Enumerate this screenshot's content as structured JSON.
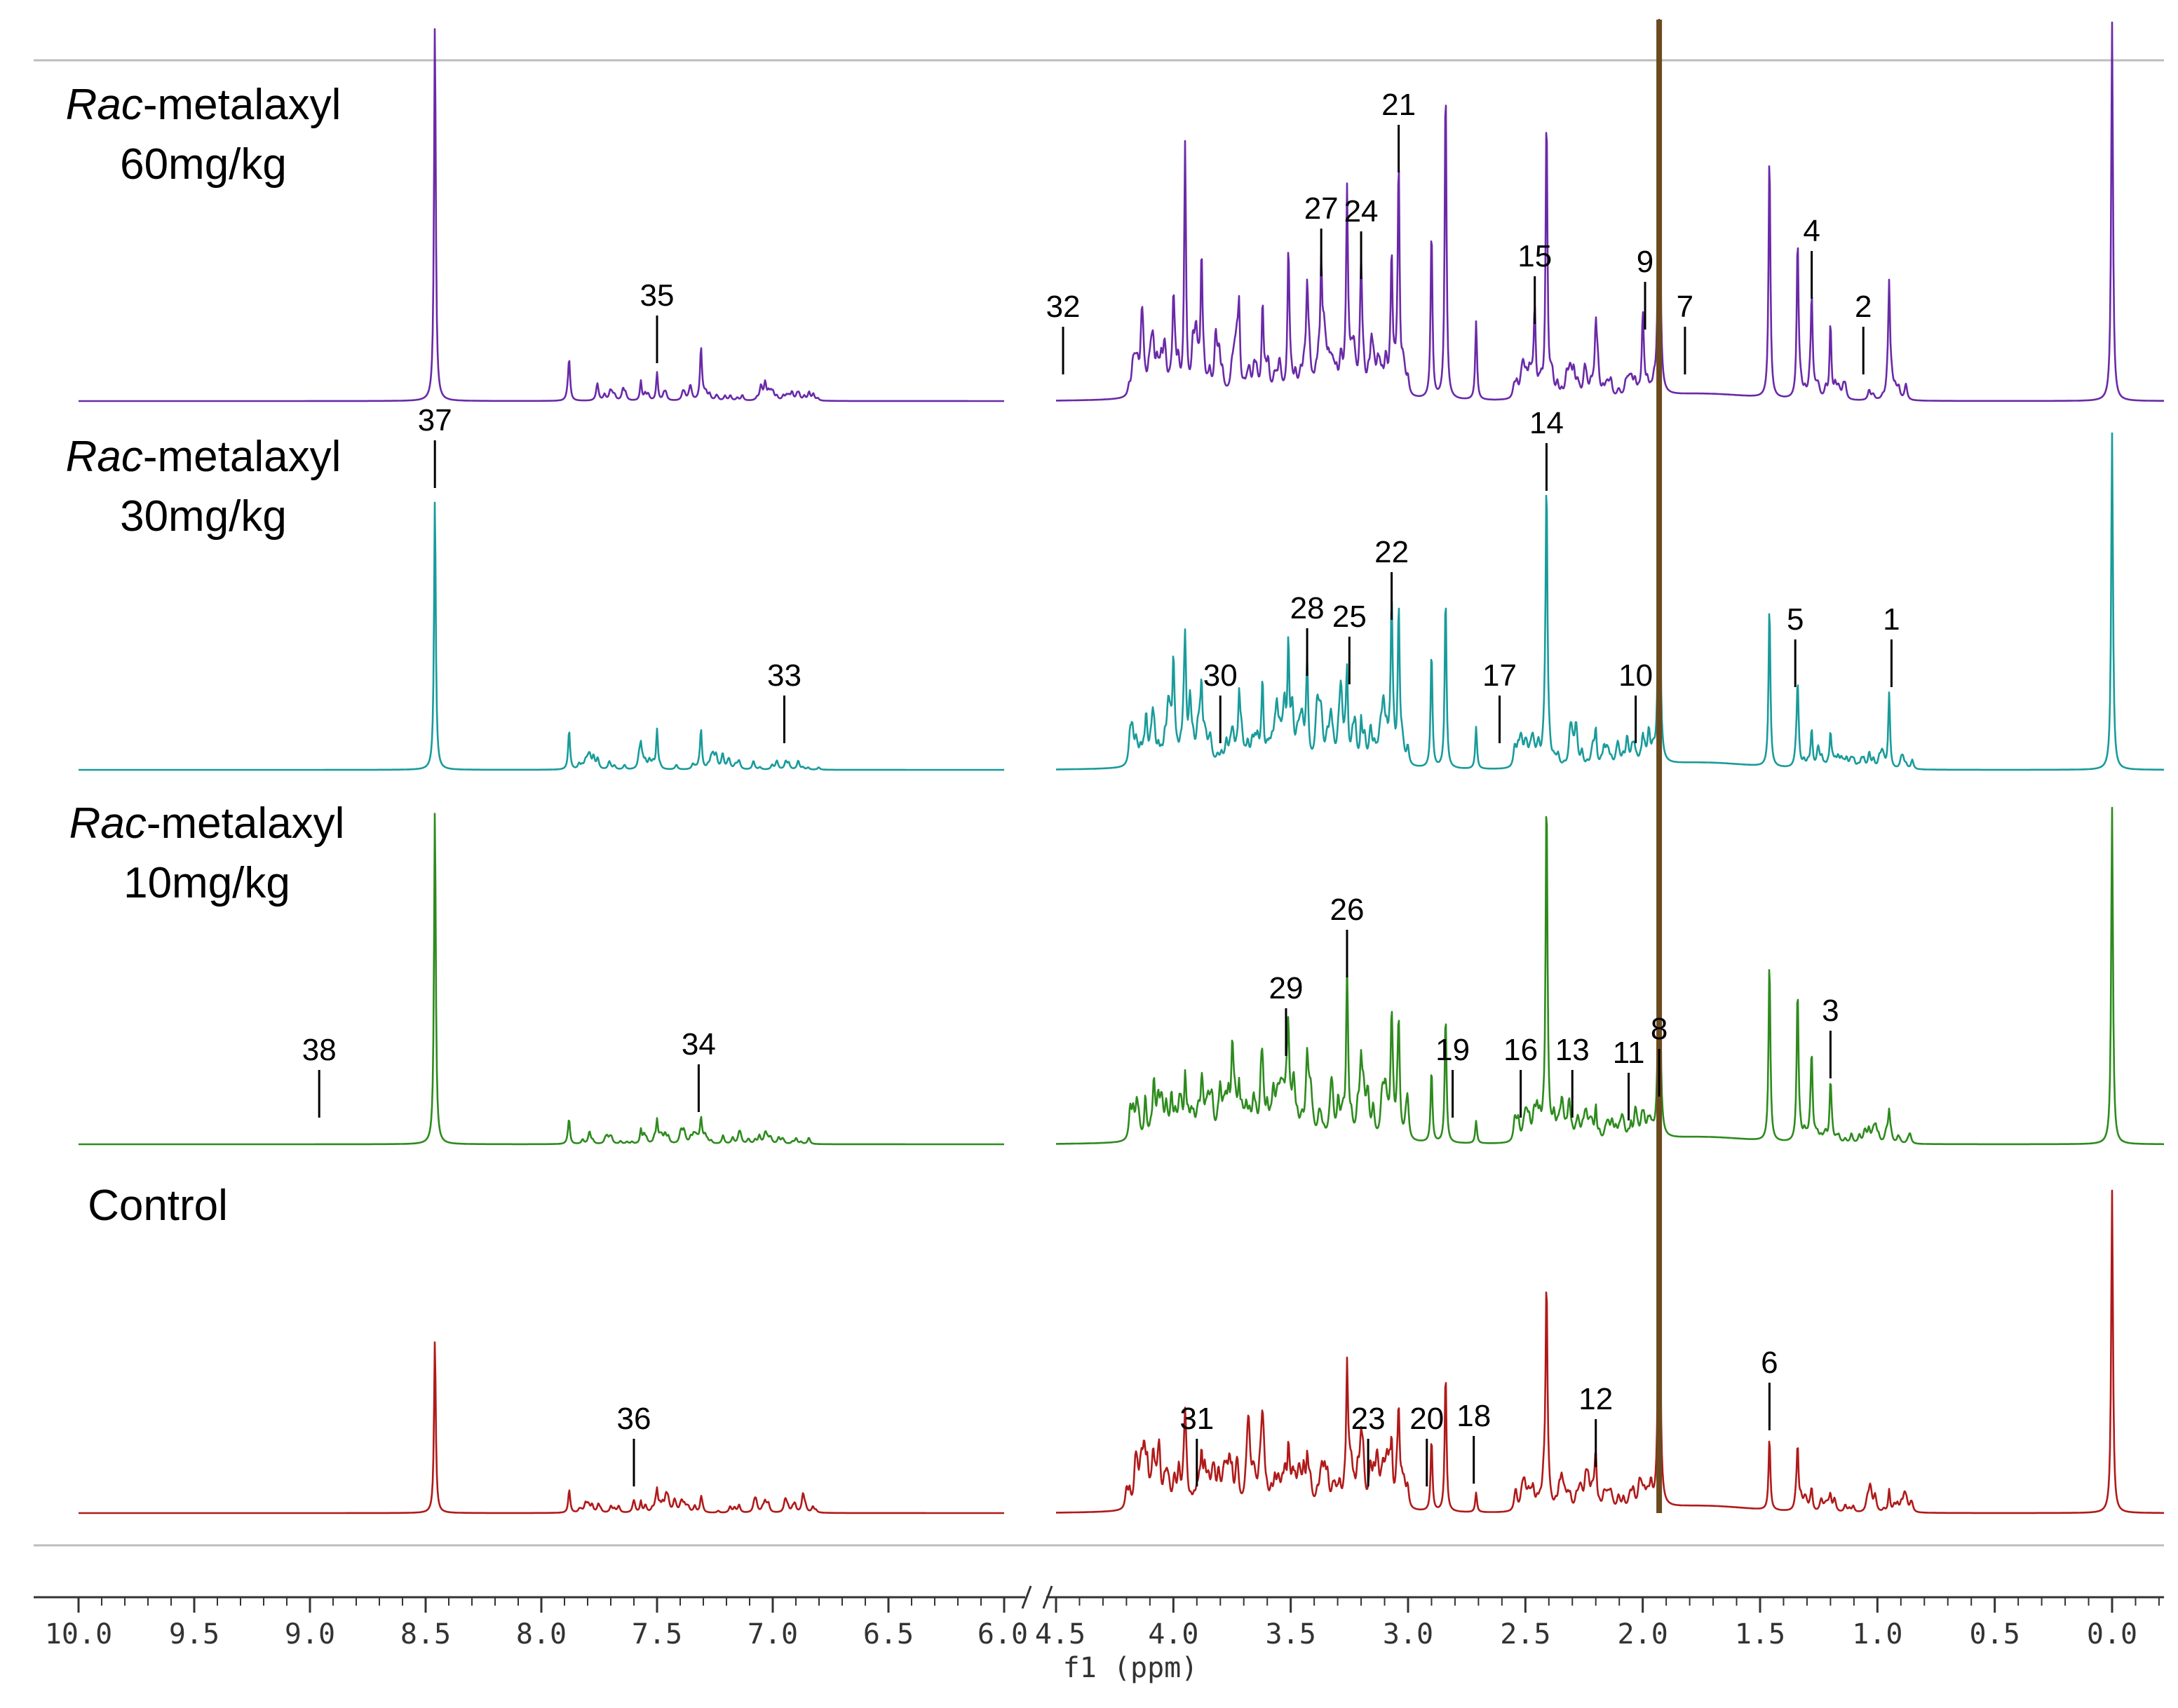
{
  "chart_data": {
    "type": "line",
    "title": "",
    "xlabel": "f1 (ppm)",
    "ylabel": "",
    "x_reversed": true,
    "axis_break": {
      "high_segment": [
        6.0,
        10.0
      ],
      "low_segment": [
        -0.2,
        4.5
      ]
    },
    "x_ticks": [
      "10.0",
      "9.5",
      "9.0",
      "8.5",
      "8.0",
      "7.5",
      "7.0",
      "6.5",
      "6.0",
      "4.5",
      "4.0",
      "3.5",
      "3.0",
      "2.5",
      "2.0",
      "1.5",
      "1.0",
      "0.5",
      "0.0"
    ],
    "series": [
      {
        "label_prefix": "Rac",
        "label_rest": "-metalaxyl",
        "label_dose": "60mg/kg",
        "color": "#6a2aa8",
        "peaks": [
          [
            8.46,
            1.35
          ],
          [
            7.88,
            0.12
          ],
          [
            7.57,
            0.07
          ],
          [
            7.5,
            0.1
          ],
          [
            7.31,
            0.13
          ],
          [
            3.95,
            0.86
          ],
          [
            3.88,
            0.46
          ],
          [
            4.0,
            0.23
          ],
          [
            3.72,
            0.26
          ],
          [
            3.62,
            0.3
          ],
          [
            3.51,
            0.44
          ],
          [
            3.43,
            0.2
          ],
          [
            3.37,
            0.41
          ],
          [
            3.26,
            0.68
          ],
          [
            3.2,
            0.4
          ],
          [
            3.07,
            0.45
          ],
          [
            3.04,
            0.78
          ],
          [
            2.9,
            0.61
          ],
          [
            2.84,
            1.14
          ],
          [
            2.71,
            0.28
          ],
          [
            2.46,
            0.24
          ],
          [
            2.41,
            1.02
          ],
          [
            2.2,
            0.17
          ],
          [
            2.0,
            0.22
          ],
          [
            1.93,
            1.35
          ],
          [
            1.46,
            0.88
          ],
          [
            1.34,
            0.56
          ],
          [
            1.28,
            0.33
          ],
          [
            1.2,
            0.27
          ],
          [
            0.95,
            0.39
          ],
          [
            0.0,
            1.35
          ]
        ],
        "labels": [
          {
            "text": "35",
            "ppm": 7.5
          },
          {
            "text": "32",
            "ppm": 4.47
          },
          {
            "text": "27",
            "ppm": 3.37
          },
          {
            "text": "24",
            "ppm": 3.2
          },
          {
            "text": "21",
            "ppm": 3.04
          },
          {
            "text": "15",
            "ppm": 2.46
          },
          {
            "text": "9",
            "ppm": 1.99
          },
          {
            "text": "7",
            "ppm": 1.82
          },
          {
            "text": "4",
            "ppm": 1.28
          },
          {
            "text": "2",
            "ppm": 1.06
          }
        ]
      },
      {
        "label_prefix": "Rac",
        "label_rest": "-metalaxyl",
        "label_dose": "30mg/kg",
        "color": "#1a9b9b",
        "peaks": [
          [
            8.46,
            0.97
          ],
          [
            7.88,
            0.13
          ],
          [
            7.57,
            0.07
          ],
          [
            7.5,
            0.14
          ],
          [
            7.31,
            0.12
          ],
          [
            3.95,
            0.25
          ],
          [
            3.88,
            0.23
          ],
          [
            4.0,
            0.22
          ],
          [
            3.72,
            0.19
          ],
          [
            3.62,
            0.26
          ],
          [
            3.51,
            0.4
          ],
          [
            3.43,
            0.3
          ],
          [
            3.26,
            0.27
          ],
          [
            3.2,
            0.14
          ],
          [
            3.07,
            0.5
          ],
          [
            3.04,
            0.52
          ],
          [
            2.9,
            0.42
          ],
          [
            2.84,
            0.62
          ],
          [
            2.71,
            0.15
          ],
          [
            2.41,
            0.96
          ],
          [
            2.2,
            0.12
          ],
          [
            2.0,
            0.08
          ],
          [
            1.93,
            1.2
          ],
          [
            1.46,
            0.58
          ],
          [
            1.34,
            0.26
          ],
          [
            1.28,
            0.13
          ],
          [
            1.2,
            0.12
          ],
          [
            0.95,
            0.26
          ],
          [
            0.0,
            1.2
          ]
        ],
        "labels": [
          {
            "text": "37",
            "ppm": 8.46
          },
          {
            "text": "33",
            "ppm": 6.95
          },
          {
            "text": "30",
            "ppm": 3.8
          },
          {
            "text": "28",
            "ppm": 3.43
          },
          {
            "text": "25",
            "ppm": 3.25
          },
          {
            "text": "22",
            "ppm": 3.07
          },
          {
            "text": "17",
            "ppm": 2.61
          },
          {
            "text": "14",
            "ppm": 2.41
          },
          {
            "text": "10",
            "ppm": 2.03
          },
          {
            "text": "5",
            "ppm": 1.35
          },
          {
            "text": "1",
            "ppm": 0.94
          }
        ]
      },
      {
        "label_prefix": "Rac",
        "label_rest": "-metalaxyl",
        "label_dose": "10mg/kg",
        "color": "#2e8b1e",
        "peaks": [
          [
            8.46,
            1.2
          ],
          [
            7.88,
            0.07
          ],
          [
            7.57,
            0.05
          ],
          [
            7.5,
            0.08
          ],
          [
            7.31,
            0.08
          ],
          [
            4.12,
            0.1
          ],
          [
            3.95,
            0.18
          ],
          [
            3.88,
            0.12
          ],
          [
            3.75,
            0.15
          ],
          [
            3.72,
            0.14
          ],
          [
            3.62,
            0.12
          ],
          [
            3.51,
            0.28
          ],
          [
            3.43,
            0.16
          ],
          [
            3.26,
            0.56
          ],
          [
            3.2,
            0.14
          ],
          [
            3.07,
            0.28
          ],
          [
            3.04,
            0.26
          ],
          [
            2.9,
            0.26
          ],
          [
            2.84,
            0.46
          ],
          [
            2.71,
            0.08
          ],
          [
            2.41,
            1.2
          ],
          [
            2.2,
            0.12
          ],
          [
            2.05,
            0.05
          ],
          [
            1.93,
            1.2
          ],
          [
            1.46,
            0.65
          ],
          [
            1.34,
            0.52
          ],
          [
            1.28,
            0.25
          ],
          [
            1.2,
            0.2
          ],
          [
            0.95,
            0.1
          ],
          [
            0.0,
            1.2
          ]
        ],
        "labels": [
          {
            "text": "38",
            "ppm": 8.96
          },
          {
            "text": "34",
            "ppm": 7.32
          },
          {
            "text": "29",
            "ppm": 3.52
          },
          {
            "text": "26",
            "ppm": 3.26
          },
          {
            "text": "19",
            "ppm": 2.81
          },
          {
            "text": "16",
            "ppm": 2.52
          },
          {
            "text": "13",
            "ppm": 2.3
          },
          {
            "text": "11",
            "ppm": 2.06
          },
          {
            "text": "3",
            "ppm": 1.2
          }
        ]
      },
      {
        "label_prefix": "",
        "label_rest": "Control",
        "label_dose": "",
        "color": "#b01a1a",
        "peaks": [
          [
            8.46,
            0.62
          ],
          [
            7.88,
            0.06
          ],
          [
            7.57,
            0.04
          ],
          [
            7.5,
            0.07
          ],
          [
            7.31,
            0.04
          ],
          [
            4.12,
            0.05
          ],
          [
            3.95,
            0.2
          ],
          [
            3.88,
            0.16
          ],
          [
            3.75,
            0.09
          ],
          [
            3.62,
            0.1
          ],
          [
            3.51,
            0.17
          ],
          [
            3.43,
            0.12
          ],
          [
            3.26,
            0.46
          ],
          [
            3.2,
            0.1
          ],
          [
            3.07,
            0.2
          ],
          [
            3.04,
            0.22
          ],
          [
            2.9,
            0.26
          ],
          [
            2.84,
            0.5
          ],
          [
            2.71,
            0.07
          ],
          [
            2.41,
            0.7
          ],
          [
            2.2,
            0.13
          ],
          [
            1.93,
            1.45
          ],
          [
            1.46,
            0.26
          ],
          [
            1.34,
            0.22
          ],
          [
            1.28,
            0.07
          ],
          [
            1.2,
            0.05
          ],
          [
            0.95,
            0.08
          ],
          [
            0.0,
            1.15
          ]
        ],
        "labels": [
          {
            "text": "36",
            "ppm": 7.6
          },
          {
            "text": "31",
            "ppm": 3.9
          },
          {
            "text": "23",
            "ppm": 3.17
          },
          {
            "text": "20",
            "ppm": 2.92
          },
          {
            "text": "18",
            "ppm": 2.72
          },
          {
            "text": "12",
            "ppm": 2.2
          },
          {
            "text": "8",
            "ppm": 1.93
          },
          {
            "text": "6",
            "ppm": 1.46
          }
        ]
      }
    ]
  }
}
